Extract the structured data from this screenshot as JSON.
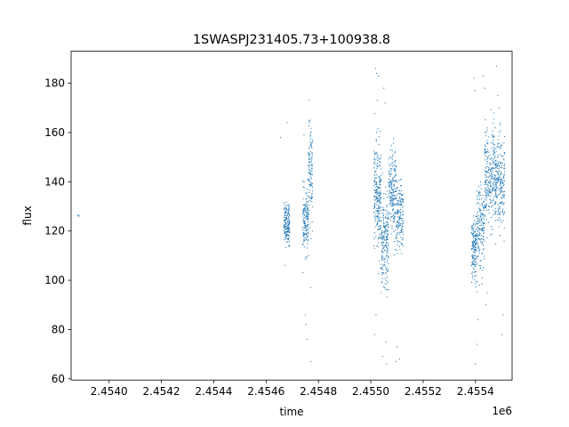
{
  "chart_data": {
    "type": "scatter",
    "title": "1SWASPJ231405.73+100938.8",
    "xlabel": "time",
    "ylabel": "flux",
    "x_offset_label": "1e6",
    "xlim": [
      2453855,
      2455540
    ],
    "ylim": [
      59.5,
      193
    ],
    "x_ticks": [
      2454000,
      2454200,
      2454400,
      2454600,
      2454800,
      2455000,
      2455200,
      2455400
    ],
    "x_tick_labels": [
      "2.4540",
      "2.4542",
      "2.4544",
      "2.4546",
      "2.4548",
      "2.4550",
      "2.4552",
      "2.4554"
    ],
    "y_ticks": [
      60,
      80,
      100,
      120,
      140,
      160,
      180
    ],
    "y_tick_labels": [
      "60",
      "80",
      "100",
      "120",
      "140",
      "160",
      "180"
    ],
    "grid": false,
    "legend": "none",
    "series_color": "#1f77b4",
    "clusters": [
      {
        "x_range": [
          2453880,
          2453885
        ],
        "center": 126.5,
        "spread": 0.5,
        "n": 3
      },
      {
        "x_range": [
          2454668,
          2454690
        ],
        "center": 123,
        "spread": 4,
        "n": 170
      },
      {
        "x_range": [
          2454740,
          2454762
        ],
        "center": 124,
        "spread": 6,
        "n": 150
      },
      {
        "x_range": [
          2454762,
          2454778
        ],
        "center": 143,
        "spread": 9,
        "n": 110
      },
      {
        "x_range": [
          2455012,
          2455040
        ],
        "center": 134,
        "spread": 11,
        "n": 230
      },
      {
        "x_range": [
          2455040,
          2455068
        ],
        "center": 115,
        "spread": 9,
        "n": 190
      },
      {
        "x_range": [
          2455068,
          2455098
        ],
        "center": 136,
        "spread": 9,
        "n": 190
      },
      {
        "x_range": [
          2455098,
          2455125
        ],
        "center": 125,
        "spread": 7,
        "n": 150
      },
      {
        "x_range": [
          2455385,
          2455405
        ],
        "center": 113,
        "spread": 6,
        "n": 150
      },
      {
        "x_range": [
          2455405,
          2455435
        ],
        "center": 122,
        "spread": 8,
        "n": 170
      },
      {
        "x_range": [
          2455435,
          2455475
        ],
        "center": 142,
        "spread": 10,
        "n": 240
      },
      {
        "x_range": [
          2455475,
          2455512
        ],
        "center": 139,
        "spread": 10,
        "n": 230
      }
    ],
    "outliers": [
      {
        "x": 2454655,
        "y": 158
      },
      {
        "x": 2454680,
        "y": 164
      },
      {
        "x": 2454672,
        "y": 106
      },
      {
        "x": 2454745,
        "y": 159
      },
      {
        "x": 2454750,
        "y": 86
      },
      {
        "x": 2454752,
        "y": 82
      },
      {
        "x": 2454756,
        "y": 76
      },
      {
        "x": 2454765,
        "y": 173
      },
      {
        "x": 2454768,
        "y": 165
      },
      {
        "x": 2454770,
        "y": 97
      },
      {
        "x": 2454772,
        "y": 67
      },
      {
        "x": 2454762,
        "y": 110
      },
      {
        "x": 2455018,
        "y": 186
      },
      {
        "x": 2455022,
        "y": 184
      },
      {
        "x": 2455030,
        "y": 183
      },
      {
        "x": 2455025,
        "y": 173
      },
      {
        "x": 2455020,
        "y": 86
      },
      {
        "x": 2455015,
        "y": 78
      },
      {
        "x": 2455050,
        "y": 178
      },
      {
        "x": 2455055,
        "y": 172
      },
      {
        "x": 2455045,
        "y": 69
      },
      {
        "x": 2455060,
        "y": 66
      },
      {
        "x": 2455058,
        "y": 75
      },
      {
        "x": 2455095,
        "y": 67
      },
      {
        "x": 2455100,
        "y": 73
      },
      {
        "x": 2455110,
        "y": 68
      },
      {
        "x": 2455040,
        "y": 95
      },
      {
        "x": 2455395,
        "y": 182
      },
      {
        "x": 2455398,
        "y": 177
      },
      {
        "x": 2455400,
        "y": 66
      },
      {
        "x": 2455405,
        "y": 74
      },
      {
        "x": 2455410,
        "y": 84
      },
      {
        "x": 2455415,
        "y": 98
      },
      {
        "x": 2455430,
        "y": 183
      },
      {
        "x": 2455435,
        "y": 178
      },
      {
        "x": 2455440,
        "y": 90
      },
      {
        "x": 2455445,
        "y": 95
      },
      {
        "x": 2455480,
        "y": 187
      },
      {
        "x": 2455485,
        "y": 175
      },
      {
        "x": 2455490,
        "y": 170
      },
      {
        "x": 2455500,
        "y": 78
      },
      {
        "x": 2455505,
        "y": 86
      }
    ]
  }
}
